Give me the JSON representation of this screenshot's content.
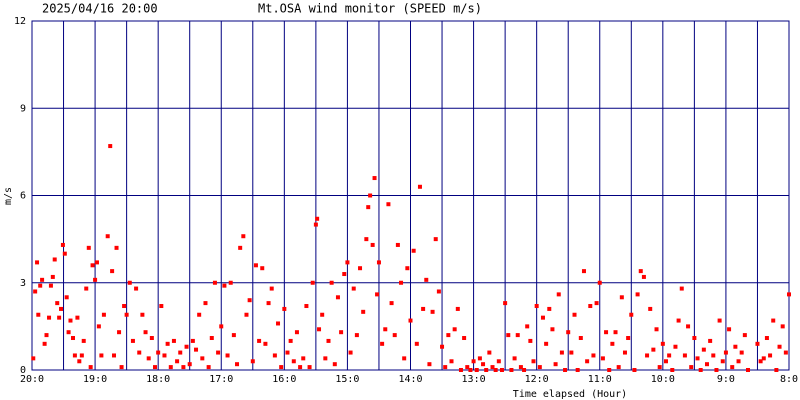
{
  "chart_data": {
    "type": "scatter",
    "timestamp": "2025/04/16 20:00",
    "title": "Mt.OSA wind monitor (SPEED m/s)",
    "y_label": "m/s",
    "x_label": "Time elapsed (Hour)",
    "color": "#ff0000",
    "grid_color": "#000080",
    "grid": true,
    "xlim": [
      0,
      12
    ],
    "ylim": [
      0,
      12
    ],
    "yticks": [
      0,
      3,
      6,
      9,
      12
    ],
    "xticks": [
      {
        "value": 0,
        "label": "20:0"
      },
      {
        "value": 1,
        "label": "19:0"
      },
      {
        "value": 2,
        "label": "18:0"
      },
      {
        "value": 3,
        "label": "17:0"
      },
      {
        "value": 4,
        "label": "16:0"
      },
      {
        "value": 5,
        "label": "15:0"
      },
      {
        "value": 6,
        "label": "14:0"
      },
      {
        "value": 7,
        "label": "13:0"
      },
      {
        "value": 8,
        "label": "12:0"
      },
      {
        "value": 9,
        "label": "11:0"
      },
      {
        "value": 10,
        "label": "10:0"
      },
      {
        "value": 11,
        "label": "9:0"
      },
      {
        "value": 12,
        "label": "8:0"
      }
    ],
    "x_minor_ticks": [
      0.5,
      1.5,
      2.5,
      3.5,
      4.5,
      5.5,
      6.5,
      7.5,
      8.5,
      9.5,
      10.5,
      11.5
    ],
    "x": [
      0.02,
      0.05,
      0.08,
      0.1,
      0.13,
      0.16,
      0.2,
      0.23,
      0.27,
      0.3,
      0.33,
      0.36,
      0.4,
      0.43,
      0.46,
      0.49,
      0.52,
      0.55,
      0.58,
      0.61,
      0.65,
      0.68,
      0.72,
      0.75,
      0.79,
      0.82,
      0.86,
      0.9,
      0.93,
      0.96,
      1.0,
      1.03,
      1.06,
      1.1,
      1.14,
      1.2,
      1.24,
      1.27,
      1.3,
      1.34,
      1.38,
      1.42,
      1.46,
      1.5,
      1.55,
      1.6,
      1.65,
      1.7,
      1.75,
      1.8,
      1.85,
      1.9,
      1.95,
      2.0,
      2.05,
      2.1,
      2.15,
      2.2,
      2.25,
      2.3,
      2.35,
      2.4,
      2.45,
      2.5,
      2.55,
      2.6,
      2.65,
      2.7,
      2.75,
      2.8,
      2.85,
      2.9,
      2.95,
      3.0,
      3.05,
      3.1,
      3.15,
      3.2,
      3.25,
      3.3,
      3.35,
      3.4,
      3.45,
      3.5,
      3.55,
      3.6,
      3.65,
      3.7,
      3.75,
      3.8,
      3.85,
      3.9,
      3.95,
      4.0,
      4.05,
      4.1,
      4.15,
      4.2,
      4.25,
      4.3,
      4.35,
      4.4,
      4.45,
      4.5,
      4.52,
      4.55,
      4.6,
      4.65,
      4.7,
      4.75,
      4.8,
      4.85,
      4.9,
      4.95,
      5.0,
      5.05,
      5.1,
      5.15,
      5.2,
      5.25,
      5.3,
      5.33,
      5.36,
      5.4,
      5.43,
      5.47,
      5.5,
      5.55,
      5.6,
      5.65,
      5.7,
      5.75,
      5.8,
      5.85,
      5.9,
      5.95,
      6.0,
      6.05,
      6.1,
      6.15,
      6.2,
      6.25,
      6.3,
      6.35,
      6.4,
      6.45,
      6.5,
      6.55,
      6.6,
      6.65,
      6.7,
      6.75,
      6.8,
      6.85,
      6.9,
      6.95,
      7.0,
      7.05,
      7.1,
      7.15,
      7.2,
      7.25,
      7.3,
      7.35,
      7.4,
      7.45,
      7.5,
      7.55,
      7.6,
      7.65,
      7.7,
      7.75,
      7.8,
      7.85,
      7.9,
      7.95,
      8.0,
      8.05,
      8.1,
      8.15,
      8.2,
      8.25,
      8.3,
      8.35,
      8.4,
      8.45,
      8.5,
      8.55,
      8.6,
      8.65,
      8.7,
      8.75,
      8.8,
      8.85,
      8.9,
      8.95,
      9.0,
      9.05,
      9.1,
      9.15,
      9.2,
      9.25,
      9.3,
      9.35,
      9.4,
      9.45,
      9.5,
      9.55,
      9.6,
      9.65,
      9.7,
      9.75,
      9.8,
      9.85,
      9.9,
      9.95,
      10.0,
      10.05,
      10.1,
      10.15,
      10.2,
      10.25,
      10.3,
      10.35,
      10.4,
      10.45,
      10.5,
      10.55,
      10.6,
      10.65,
      10.7,
      10.75,
      10.8,
      10.85,
      10.9,
      10.95,
      11.0,
      11.05,
      11.1,
      11.15,
      11.2,
      11.25,
      11.3,
      11.35,
      11.5,
      11.55,
      11.6,
      11.65,
      11.7,
      11.75,
      11.8,
      11.85,
      11.9,
      11.95,
      12.0
    ],
    "values": [
      0.4,
      2.7,
      3.7,
      1.9,
      2.9,
      3.1,
      0.9,
      1.2,
      1.8,
      2.9,
      3.2,
      3.8,
      2.3,
      1.8,
      2.1,
      4.3,
      4.0,
      2.5,
      1.3,
      1.7,
      1.1,
      0.5,
      1.8,
      0.3,
      0.5,
      1.0,
      2.8,
      4.2,
      0.1,
      3.6,
      3.1,
      3.7,
      1.5,
      0.5,
      1.9,
      4.6,
      7.7,
      3.4,
      0.5,
      4.2,
      1.3,
      0.1,
      2.2,
      1.9,
      3.0,
      1.0,
      2.8,
      0.6,
      1.9,
      1.3,
      0.4,
      1.1,
      0.1,
      0.6,
      2.2,
      0.5,
      0.9,
      0.1,
      1.0,
      0.3,
      0.6,
      0.1,
      0.8,
      0.2,
      1.0,
      0.7,
      1.9,
      0.4,
      2.3,
      0.1,
      1.1,
      3.0,
      0.6,
      1.5,
      2.9,
      0.5,
      3.0,
      1.2,
      0.2,
      4.2,
      4.6,
      1.9,
      2.4,
      0.3,
      3.6,
      1.0,
      3.5,
      0.9,
      2.3,
      2.8,
      0.5,
      1.6,
      0.1,
      2.1,
      0.6,
      1.0,
      0.3,
      1.3,
      0.1,
      0.4,
      2.2,
      0.1,
      3.0,
      5.0,
      5.2,
      1.4,
      1.9,
      0.4,
      1.0,
      3.0,
      0.2,
      2.5,
      1.3,
      3.3,
      3.7,
      0.6,
      2.8,
      1.2,
      3.5,
      2.0,
      4.5,
      5.6,
      6.0,
      4.3,
      6.6,
      2.6,
      3.7,
      0.9,
      1.4,
      5.7,
      2.3,
      1.2,
      4.3,
      3.0,
      0.4,
      3.5,
      1.7,
      4.1,
      0.9,
      6.3,
      2.1,
      3.1,
      0.2,
      2.0,
      4.5,
      2.7,
      0.8,
      0.1,
      1.2,
      0.3,
      1.4,
      2.1,
      0.0,
      1.1,
      0.1,
      0.0,
      0.3,
      0.0,
      0.4,
      0.2,
      0.0,
      0.6,
      0.1,
      0.0,
      0.3,
      0.0,
      2.3,
      1.2,
      0.0,
      0.4,
      1.2,
      0.1,
      0.0,
      1.5,
      1.0,
      0.3,
      2.2,
      0.1,
      1.8,
      0.9,
      2.1,
      1.4,
      0.2,
      2.6,
      0.6,
      0.0,
      1.3,
      0.6,
      1.9,
      0.0,
      1.1,
      3.4,
      0.3,
      2.2,
      0.5,
      2.3,
      3.0,
      0.4,
      1.3,
      0.0,
      0.9,
      1.3,
      0.1,
      2.5,
      0.6,
      1.1,
      1.9,
      0.0,
      2.6,
      3.4,
      3.2,
      0.5,
      2.1,
      0.7,
      1.4,
      0.1,
      0.9,
      0.3,
      0.5,
      0.0,
      0.8,
      1.7,
      2.8,
      0.5,
      1.5,
      0.1,
      1.1,
      0.4,
      0.0,
      0.7,
      0.2,
      1.0,
      0.5,
      0.0,
      1.7,
      0.3,
      0.6,
      1.4,
      0.1,
      0.8,
      0.3,
      0.6,
      1.2,
      0.0,
      0.9,
      0.3,
      0.4,
      1.1,
      0.5,
      1.7,
      0.0,
      0.8,
      1.5,
      0.6,
      2.6
    ]
  }
}
